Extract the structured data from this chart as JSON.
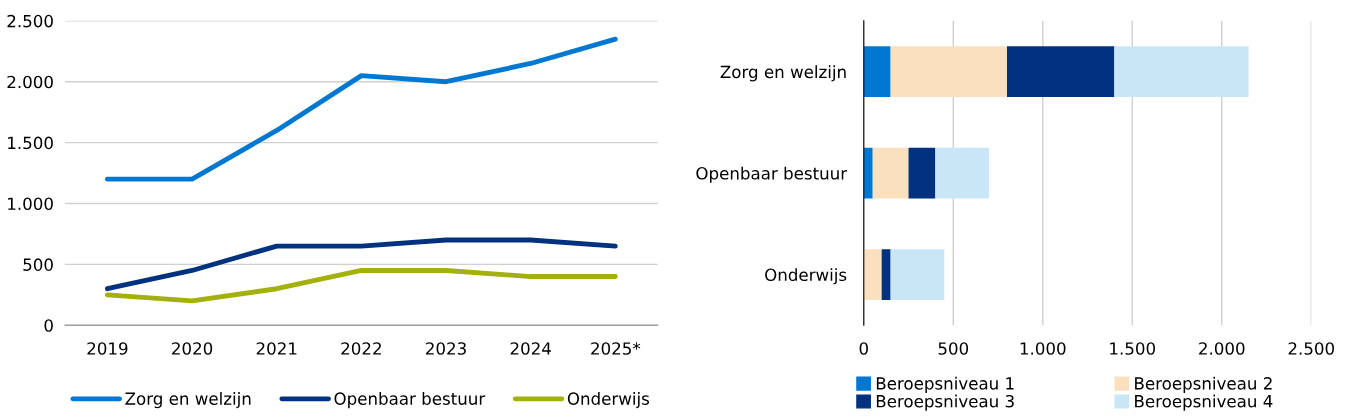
{
  "chart_data": [
    {
      "type": "line",
      "categories": [
        "2019",
        "2020",
        "2021",
        "2022",
        "2023",
        "2024",
        "2025*"
      ],
      "series": [
        {
          "name": "Zorg en welzijn",
          "color": "#0078d2",
          "values": [
            1200,
            1200,
            1600,
            2050,
            2000,
            2150,
            2350
          ]
        },
        {
          "name": "Openbaar bestuur",
          "color": "#01317f",
          "values": [
            300,
            450,
            650,
            650,
            700,
            700,
            650
          ]
        },
        {
          "name": "Onderwijs",
          "color": "#a3b10a",
          "values": [
            250,
            200,
            300,
            450,
            450,
            400,
            400
          ]
        }
      ],
      "ylim": [
        0,
        2500
      ],
      "yticks": [
        0,
        500,
        {
          "value": 1000,
          "label": "1.000"
        },
        {
          "value": 1500,
          "label": "1.500"
        },
        {
          "value": 2000,
          "label": "2.000"
        },
        {
          "value": 2500,
          "label": "2.500"
        }
      ],
      "grid": "y",
      "legend": "bottom",
      "marker": "none",
      "line_style": "solid"
    },
    {
      "type": "bar",
      "orientation": "horizontal",
      "stacked": true,
      "categories": [
        "Zorg en welzijn",
        "Openbaar bestuur",
        "Onderwijs"
      ],
      "series": [
        {
          "name": "Beroepsniveau 1",
          "color": "#0078d2",
          "values": [
            150,
            50,
            0
          ]
        },
        {
          "name": "Beroepsniveau 2",
          "color": "#fae0be",
          "values": [
            650,
            200,
            100
          ]
        },
        {
          "name": "Beroepsniveau 3",
          "color": "#01317f",
          "values": [
            600,
            150,
            50
          ]
        },
        {
          "name": "Beroepsniveau 4",
          "color": "#c9e6f7",
          "values": [
            750,
            300,
            300
          ]
        }
      ],
      "xlim": [
        0,
        2500
      ],
      "xticks": [
        0,
        500,
        {
          "value": 1000,
          "label": "1.000"
        },
        {
          "value": 1500,
          "label": "1.500"
        },
        {
          "value": 2000,
          "label": "2.000"
        },
        {
          "value": 2500,
          "label": "2.500"
        }
      ],
      "grid": "x",
      "legend": "bottom"
    }
  ]
}
